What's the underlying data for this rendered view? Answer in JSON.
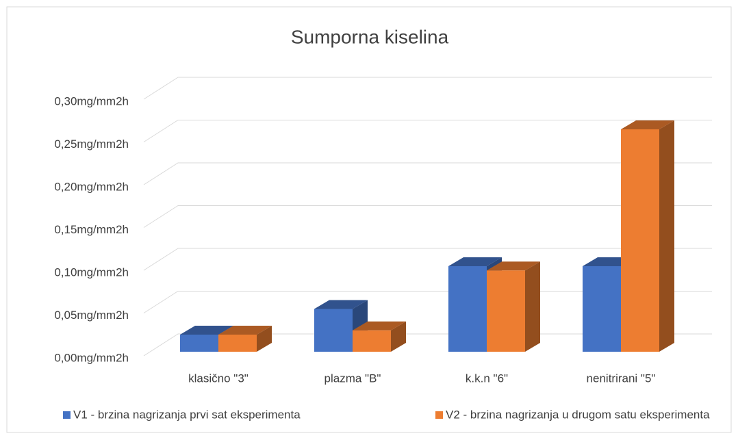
{
  "chart_data": {
    "type": "bar3d",
    "title": "Sumporna kiselina",
    "categories": [
      "klasično \"3\"",
      "plazma \"B\"",
      "k.k.n \"6\"",
      "nenitrirani \"5\""
    ],
    "series": [
      {
        "name": "V1 - brzina nagrizanja prvi sat eksperimenta",
        "color": "#4472c4",
        "values": [
          0.02,
          0.05,
          0.1,
          0.1
        ]
      },
      {
        "name": "V2 - brzina nagrizanja u drugom satu eksperimenta",
        "color": "#ed7d31",
        "values": [
          0.02,
          0.025,
          0.095,
          0.26
        ]
      }
    ],
    "ylim": [
      0,
      0.3
    ],
    "yticks": [
      {
        "value": 0,
        "label": "0,00mg/mm2h"
      },
      {
        "value": 0.05,
        "label": "0,05mg/mm2h"
      },
      {
        "value": 0.1,
        "label": "0,10mg/mm2h"
      },
      {
        "value": 0.15,
        "label": "0,15mg/mm2h"
      },
      {
        "value": 0.2,
        "label": "0,20mg/mm2h"
      },
      {
        "value": 0.25,
        "label": "0,25mg/mm2h"
      },
      {
        "value": 0.3,
        "label": "0,30mg/mm2h"
      }
    ],
    "grid": true,
    "legend": "bottom"
  }
}
